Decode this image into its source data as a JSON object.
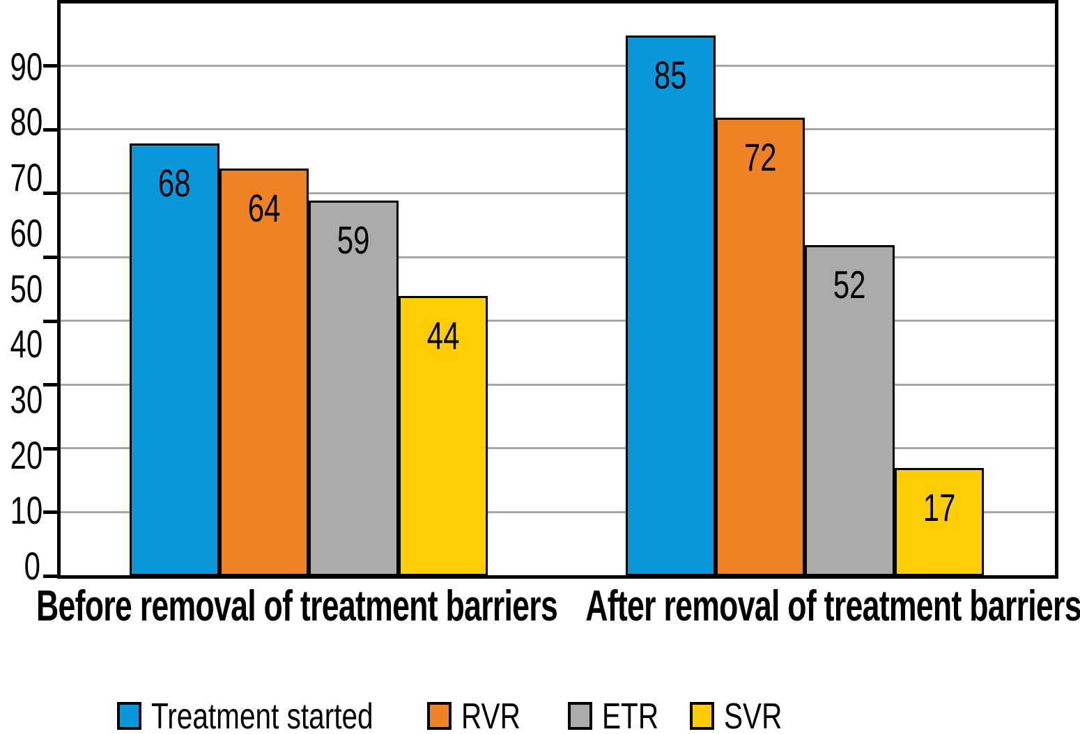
{
  "chart_data": {
    "type": "bar",
    "title": "",
    "categories": [
      "Before removal of treatment barriers",
      "After removal of treatment barriers"
    ],
    "series": [
      {
        "name": "Treatment started",
        "color": "#0997dc",
        "values": [
          68,
          85
        ]
      },
      {
        "name": "RVR",
        "color": "#f08226",
        "values": [
          64,
          72
        ]
      },
      {
        "name": "ETR",
        "color": "#ababab",
        "values": [
          59,
          52
        ]
      },
      {
        "name": "SVR",
        "color": "#ffcd06",
        "values": [
          44,
          17
        ]
      }
    ],
    "y_ticks": [
      "0",
      "10",
      "20",
      "30",
      "40",
      "50",
      "60",
      "70",
      "80",
      "90"
    ],
    "ylim": [
      0,
      100
    ],
    "bar_value_scale_max": 90,
    "grid": true,
    "gridline_color": "#a6a6a6",
    "axis_color": "#000000",
    "legend_position": "bottom"
  }
}
